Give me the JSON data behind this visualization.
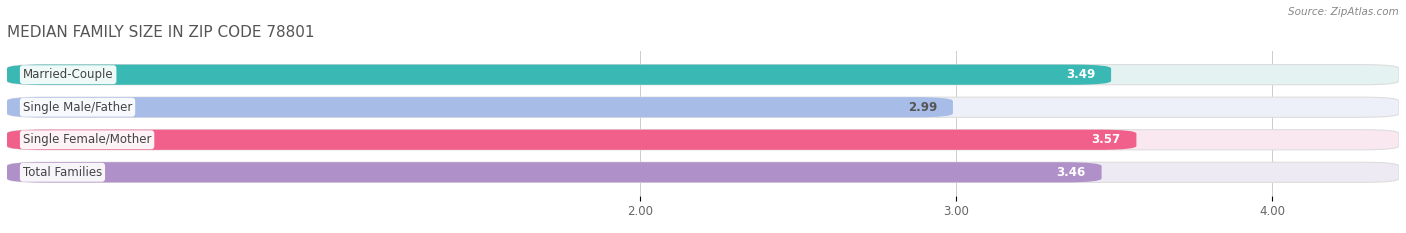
{
  "title": "MEDIAN FAMILY SIZE IN ZIP CODE 78801",
  "source": "Source: ZipAtlas.com",
  "categories": [
    "Married-Couple",
    "Single Male/Father",
    "Single Female/Mother",
    "Total Families"
  ],
  "values": [
    3.49,
    2.99,
    3.57,
    3.46
  ],
  "bar_colors": [
    "#3ab8b4",
    "#a8bce8",
    "#f0608a",
    "#b090c8"
  ],
  "bar_bg_colors": [
    "#e4f2f2",
    "#edf0f8",
    "#fae8f0",
    "#edeaf4"
  ],
  "value_colors": [
    "#ffffff",
    "#555555",
    "#ffffff",
    "#ffffff"
  ],
  "xlim_data": [
    0,
    4.4
  ],
  "xstart": 0,
  "xticks": [
    2.0,
    3.0,
    4.0
  ],
  "xtick_labels": [
    "2.00",
    "3.00",
    "4.00"
  ],
  "bar_height": 0.62,
  "label_fontsize": 8.5,
  "value_fontsize": 8.5,
  "title_fontsize": 11,
  "background_color": "#ffffff",
  "title_color": "#555555",
  "source_color": "#888888"
}
